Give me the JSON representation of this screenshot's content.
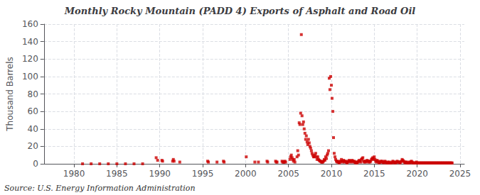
{
  "chart_data": {
    "type": "scatter",
    "title": "Monthly Rocky Mountain (PADD 4) Exports of Asphalt and Road Oil",
    "ylabel": "Thousand Barrels",
    "annotations": [
      "Source: U.S. Energy Information Administration"
    ],
    "color": "#cc0000",
    "marker": "square",
    "grid": true,
    "xlim": [
      1976.5,
      2025.5
    ],
    "xticks": [
      1980,
      1985,
      1990,
      1995,
      2000,
      2005,
      2010,
      2015,
      2020,
      2025
    ],
    "ylim": [
      0,
      160
    ],
    "yticks": [
      0,
      20,
      40,
      60,
      80,
      100,
      120,
      140,
      160
    ],
    "x": [
      1981.0,
      1982.0,
      1983.0,
      1984.0,
      1985.0,
      1986.0,
      1987.0,
      1988.0,
      1989.58,
      1989.75,
      1990.25,
      1990.33,
      1991.5,
      1991.58,
      1991.67,
      1992.33,
      1995.58,
      1995.67,
      1996.67,
      1997.42,
      1997.5,
      2000.08,
      2001.08,
      2001.5,
      2002.5,
      2002.58,
      2003.5,
      2003.58,
      2003.67,
      2004.25,
      2004.33,
      2004.42,
      2004.5,
      2004.58,
      2004.67,
      2005.17,
      2005.25,
      2005.33,
      2005.42,
      2005.5,
      2005.58,
      2005.67,
      2005.75,
      2006.0,
      2006.08,
      2006.17,
      2006.25,
      2006.33,
      2006.42,
      2006.5,
      2006.58,
      2006.67,
      2006.75,
      2006.83,
      2006.92,
      2007.0,
      2007.08,
      2007.17,
      2007.25,
      2007.33,
      2007.42,
      2007.5,
      2007.58,
      2007.67,
      2007.75,
      2007.83,
      2007.92,
      2008.0,
      2008.08,
      2008.17,
      2008.25,
      2008.33,
      2008.42,
      2008.5,
      2008.58,
      2008.67,
      2008.75,
      2008.83,
      2008.92,
      2009.0,
      2009.08,
      2009.17,
      2009.25,
      2009.33,
      2009.42,
      2009.5,
      2009.58,
      2009.67,
      2009.75,
      2009.83,
      2009.92,
      2010.0,
      2010.08,
      2010.17,
      2010.25,
      2010.33,
      2010.42,
      2010.5,
      2010.58,
      2010.67,
      2010.75,
      2010.83,
      2010.92,
      2011.0,
      2011.08,
      2011.17,
      2011.25,
      2011.33,
      2011.42,
      2011.5,
      2011.58,
      2011.67,
      2011.75,
      2011.83,
      2011.92,
      2012.0,
      2012.08,
      2012.17,
      2012.25,
      2012.33,
      2012.42,
      2012.5,
      2012.58,
      2012.67,
      2012.75,
      2012.83,
      2012.92,
      2013.0,
      2013.08,
      2013.17,
      2013.25,
      2013.33,
      2013.42,
      2013.5,
      2013.58,
      2013.67,
      2013.75,
      2013.83,
      2013.92,
      2014.0,
      2014.08,
      2014.17,
      2014.25,
      2014.33,
      2014.42,
      2014.5,
      2014.58,
      2014.67,
      2014.75,
      2014.83,
      2014.92,
      2015.0,
      2015.08,
      2015.17,
      2015.25,
      2015.33,
      2015.42,
      2015.5,
      2015.58,
      2015.67,
      2015.75,
      2015.83,
      2015.92,
      2016.0,
      2016.08,
      2016.17,
      2016.25,
      2016.33,
      2016.42,
      2016.5,
      2016.58,
      2016.67,
      2016.75,
      2016.83,
      2016.92,
      2017.0,
      2017.08,
      2017.17,
      2017.25,
      2017.33,
      2017.42,
      2017.5,
      2017.58,
      2017.67,
      2017.75,
      2017.83,
      2017.92,
      2018.0,
      2018.08,
      2018.17,
      2018.25,
      2018.33,
      2018.42,
      2018.5,
      2018.58,
      2018.67,
      2018.75,
      2018.83,
      2018.92,
      2019.0,
      2019.08,
      2019.17,
      2019.25,
      2019.33,
      2019.42,
      2019.5,
      2019.58,
      2019.67,
      2019.75,
      2019.83,
      2019.92,
      2020.0,
      2020.08,
      2020.17,
      2020.25,
      2020.33,
      2020.42,
      2020.5,
      2020.58,
      2020.67,
      2020.75,
      2020.83,
      2020.92,
      2021.0,
      2021.08,
      2021.17,
      2021.25,
      2021.33,
      2021.42,
      2021.5,
      2021.58,
      2021.67,
      2021.75,
      2021.83,
      2021.92,
      2022.0,
      2022.08,
      2022.17,
      2022.25,
      2022.33,
      2022.42,
      2022.5,
      2022.58,
      2022.67,
      2022.75,
      2022.83,
      2022.92,
      2023.0,
      2023.08,
      2023.17,
      2023.25,
      2023.33,
      2023.42,
      2023.5,
      2023.58,
      2023.67,
      2023.75,
      2023.83,
      2023.92,
      2024.0,
      2024.08
    ],
    "values": [
      0,
      0,
      0,
      0,
      0,
      0,
      0,
      0,
      7,
      4,
      4,
      3,
      3,
      5,
      3,
      2,
      3,
      2,
      2,
      3,
      2,
      8,
      2,
      2,
      3,
      2,
      3,
      2,
      2,
      3,
      2,
      2,
      2,
      3,
      2,
      5,
      8,
      10,
      7,
      5,
      3,
      5,
      2,
      8,
      15,
      10,
      47,
      45,
      58,
      148,
      55,
      45,
      48,
      40,
      35,
      28,
      32,
      25,
      22,
      28,
      24,
      20,
      18,
      15,
      12,
      10,
      8,
      8,
      10,
      12,
      8,
      5,
      8,
      5,
      4,
      3,
      3,
      2,
      2,
      2,
      3,
      5,
      4,
      8,
      6,
      10,
      12,
      15,
      98,
      85,
      100,
      90,
      75,
      60,
      30,
      12,
      8,
      5,
      3,
      2,
      3,
      2,
      1,
      2,
      3,
      5,
      3,
      2,
      4,
      3,
      2,
      3,
      2,
      1,
      2,
      3,
      4,
      3,
      2,
      3,
      4,
      3,
      2,
      3,
      2,
      1,
      2,
      1,
      2,
      3,
      4,
      3,
      2,
      5,
      6,
      7,
      3,
      2,
      3,
      2,
      3,
      4,
      3,
      2,
      3,
      2,
      3,
      5,
      6,
      7,
      5,
      8,
      5,
      3,
      2,
      4,
      3,
      2,
      1,
      2,
      3,
      2,
      3,
      2,
      1,
      2,
      3,
      2,
      1,
      1,
      2,
      1,
      2,
      1,
      1,
      1,
      2,
      3,
      2,
      1,
      2,
      1,
      2,
      3,
      2,
      2,
      2,
      1,
      2,
      3,
      5,
      4,
      3,
      2,
      1,
      2,
      2,
      1,
      1,
      1,
      2,
      1,
      2,
      3,
      2,
      1,
      1,
      1,
      1,
      1,
      2,
      1,
      1,
      1,
      1,
      1,
      1,
      1,
      1,
      1,
      1,
      1,
      1,
      1,
      1,
      1,
      1,
      1,
      1,
      1,
      1,
      1,
      1,
      1,
      1,
      1,
      1,
      1,
      1,
      1,
      1,
      1,
      1,
      1,
      1,
      1,
      1,
      1,
      1,
      1,
      1,
      1,
      1,
      1,
      1,
      1,
      1,
      1,
      1,
      1,
      1
    ]
  }
}
